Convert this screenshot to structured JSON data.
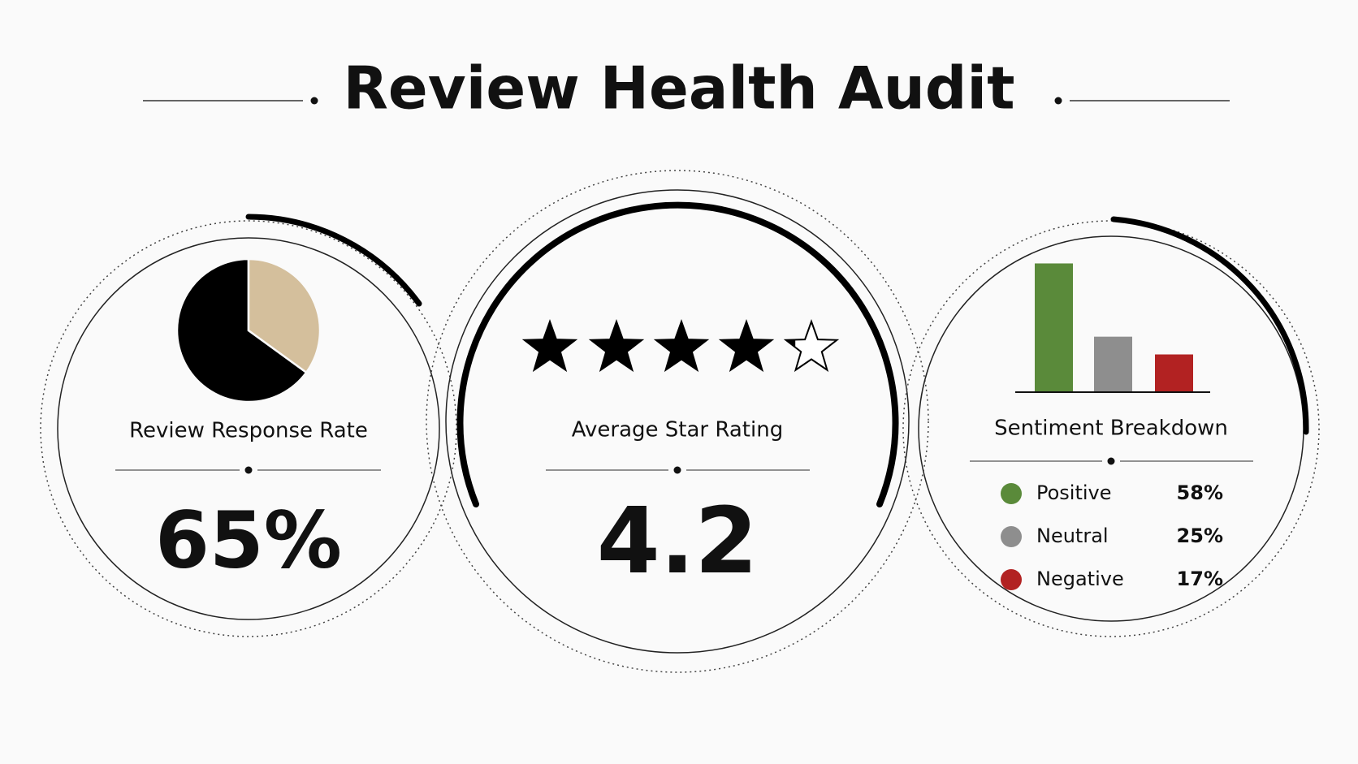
{
  "title": "Review Health Audit",
  "chart_data": [
    {
      "type": "pie",
      "title": "Review Response Rate",
      "values": [
        65,
        35
      ],
      "value_labels": [
        "65%",
        null
      ],
      "colors": [
        "#000000",
        "#d4bf9c"
      ]
    },
    {
      "type": "rating",
      "title": "Average Star Rating",
      "value": 4.2,
      "xlim": [
        0,
        5
      ],
      "color": "#000000"
    },
    {
      "type": "bar",
      "title": "Sentiment Breakdown",
      "categories": [
        "Positive",
        "Neutral",
        "Negative"
      ],
      "values": [
        58,
        25,
        17
      ],
      "value_labels": [
        "58%",
        "25%",
        "17%"
      ],
      "colors": [
        "#5a8a3a",
        "#8e8e8e",
        "#b22222"
      ],
      "ylim": [
        0,
        60
      ]
    }
  ]
}
